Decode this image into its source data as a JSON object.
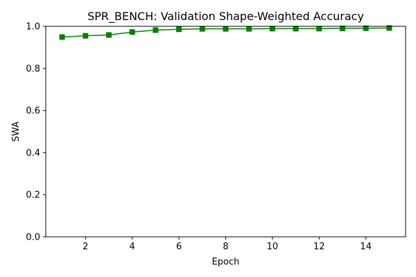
{
  "chart_data": {
    "type": "line",
    "title": "SPR_BENCH: Validation Shape-Weighted Accuracy",
    "xlabel": "Epoch",
    "ylabel": "SWA",
    "xlim": [
      0.3,
      15.7
    ],
    "ylim": [
      0.0,
      1.0
    ],
    "x_ticks": [
      2,
      4,
      6,
      8,
      10,
      12,
      14
    ],
    "y_ticks": [
      0.0,
      0.2,
      0.4,
      0.6,
      0.8,
      1.0
    ],
    "x_tick_labels": [
      "2",
      "4",
      "6",
      "8",
      "10",
      "12",
      "14"
    ],
    "y_tick_labels": [
      "0.0",
      "0.2",
      "0.4",
      "0.6",
      "0.8",
      "1.0"
    ],
    "grid": false,
    "series": [
      {
        "color": "#008000",
        "marker": "square",
        "x": [
          1,
          2,
          3,
          4,
          5,
          6,
          7,
          8,
          9,
          10,
          11,
          12,
          13,
          14,
          15
        ],
        "y": [
          0.949,
          0.955,
          0.959,
          0.973,
          0.982,
          0.986,
          0.988,
          0.988,
          0.988,
          0.989,
          0.989,
          0.989,
          0.99,
          0.991,
          0.992
        ]
      }
    ]
  }
}
